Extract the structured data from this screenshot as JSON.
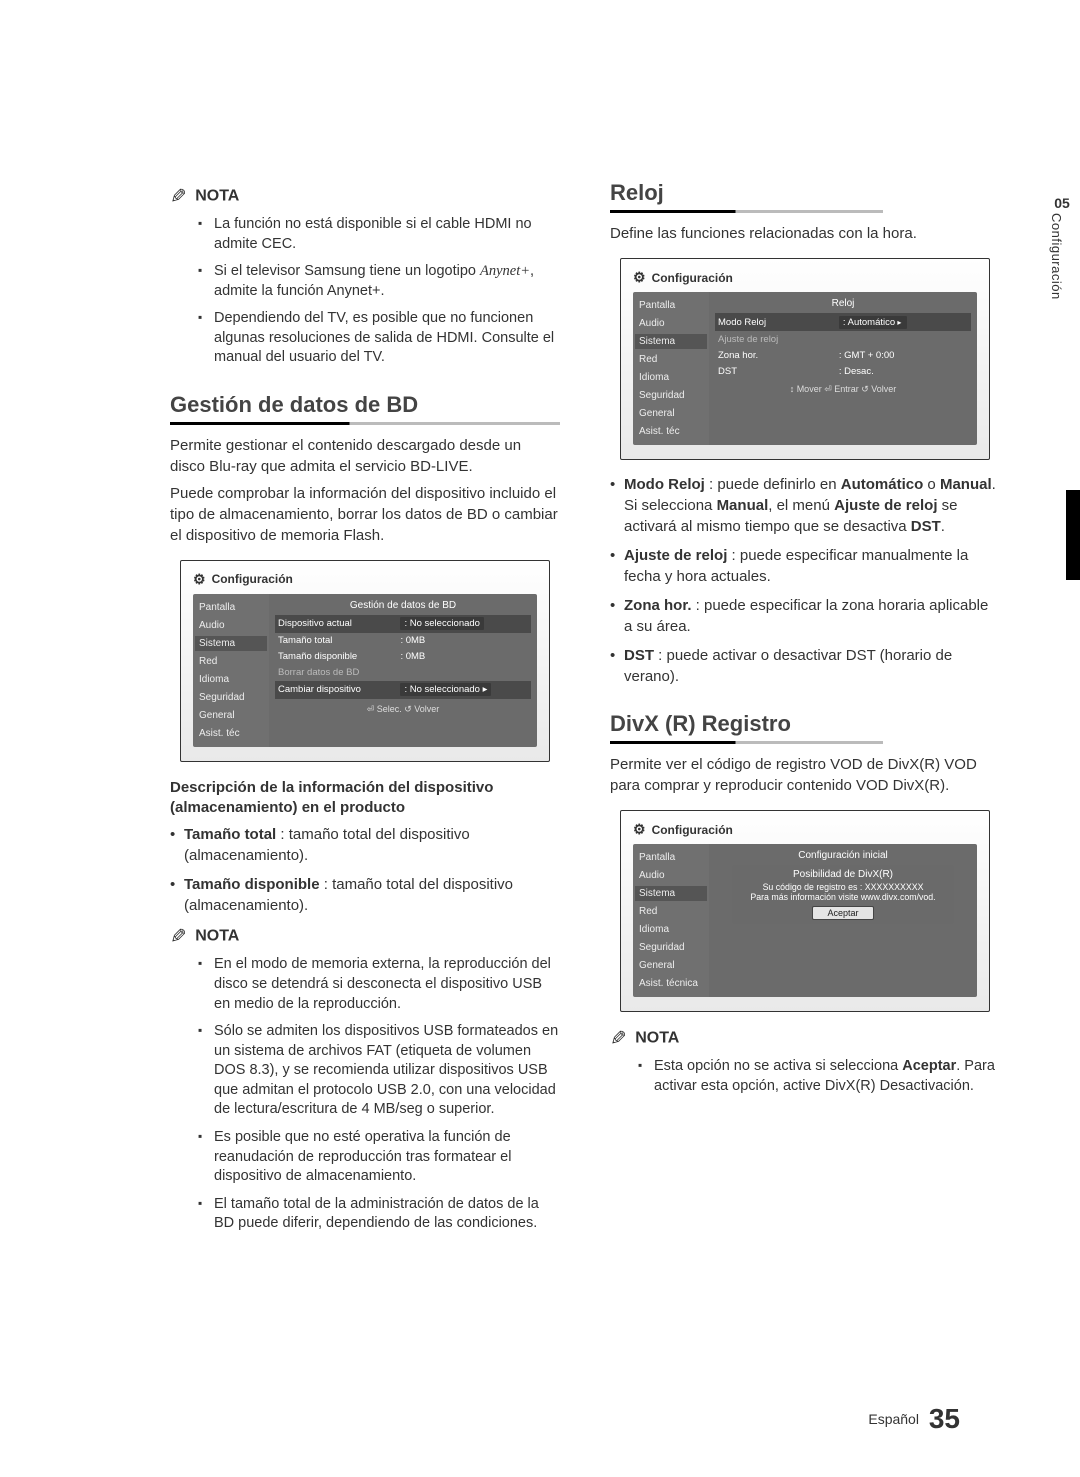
{
  "left": {
    "nota1": {
      "label": "NOTA",
      "items": [
        "La función no está disponible si el cable HDMI no admite CEC.",
        "Si el televisor Samsung tiene un logotipo <ANYNET>, admite la función Anynet+.",
        "Dependiendo del TV, es posible que no funcionen algunas resoluciones de salida de HDMI. Consulte el manual del usuario del TV."
      ]
    },
    "section1": {
      "title": "Gestión de datos de BD",
      "p1": "Permite gestionar el contenido descargado desde un disco Blu-ray que admita el servicio BD-LIVE.",
      "p2": "Puede comprobar la información del dispositivo incluido el tipo de almacenamiento, borrar los datos de BD o cambiar el dispositivo de memoria Flash."
    },
    "ui1": {
      "configTitle": "Configuración",
      "sidebar": [
        "Pantalla",
        "Audio",
        "Sistema",
        "Red",
        "Idioma",
        "Seguridad",
        "General",
        "Asist. téc"
      ],
      "mainTitle": "Gestión de datos de BD",
      "rows": [
        {
          "k": "Dispositivo actual",
          "v": ": No seleccionado",
          "sel": true
        },
        {
          "k": "Tamaño total",
          "v": ": 0MB"
        },
        {
          "k": "Tamaño disponible",
          "v": ": 0MB"
        },
        {
          "k": "Borrar datos de BD",
          "v": "",
          "dim": true
        },
        {
          "k": "Cambiar dispositivo",
          "v": ": No seleccionado ▸",
          "sel": true
        }
      ],
      "footer": "⏎ Selec.   ↺ Volver"
    },
    "descHeading": "Descripción de la información del dispositivo (almacenamiento) en el producto",
    "descBullets": [
      {
        "b": "Tamaño total",
        "t": " : tamaño total del dispositivo (almacenamiento)."
      },
      {
        "b": "Tamaño disponible",
        "t": " : tamaño total del dispositivo (almacenamiento)."
      }
    ],
    "nota2": {
      "label": "NOTA",
      "items": [
        "En el modo de memoria externa, la reproducción del disco se detendrá si desconecta el dispositivo USB en medio de la reproducción.",
        "Sólo se admiten los dispositivos USB formateados en un sistema de archivos FAT (etiqueta de volumen DOS 8.3), y se recomienda utilizar dispositivos USB que admitan el protocolo USB 2.0, con una velocidad de lectura/escritura de 4 MB/seg o superior.",
        "Es posible que no esté operativa la función de reanudación de reproducción tras formatear el dispositivo de almacenamiento.",
        "El tamaño total de la administración de datos de la BD puede diferir, dependiendo de las condiciones."
      ]
    }
  },
  "right": {
    "section1": {
      "title": "Reloj",
      "p": "Define las funciones relacionadas con la hora."
    },
    "ui2": {
      "configTitle": "Configuración",
      "sidebar": [
        "Pantalla",
        "Audio",
        "Sistema",
        "Red",
        "Idioma",
        "Seguridad",
        "General",
        "Asist. téc"
      ],
      "mainTitle": "Reloj",
      "rows": [
        {
          "k": "Modo Reloj",
          "v": ": Automático",
          "sel": true,
          "tri": true
        },
        {
          "k": "Ajuste de reloj",
          "v": "",
          "dim": true
        },
        {
          "k": "Zona hor.",
          "v": ": GMT + 0:00"
        },
        {
          "k": "DST",
          "v": ": Desac."
        }
      ],
      "footer": "↕ Mover   ⏎ Entrar   ↺ Volver"
    },
    "bullets": [
      {
        "b": "Modo Reloj",
        "t": " : puede definirlo en ",
        "b2": "Automático",
        "t2": " o ",
        "b3": "Manual",
        "t3": ".",
        "extra": "Si selecciona <b>Manual</b>, el menú <b>Ajuste de reloj</b> se activará al mismo tiempo que se desactiva <b>DST</b>."
      },
      {
        "b": "Ajuste de reloj",
        "t": " : puede especificar manualmente la fecha y hora actuales."
      },
      {
        "b": "Zona hor.",
        "t": " : puede especificar la zona horaria aplicable a su área."
      },
      {
        "b": "DST",
        "t": " : puede activar o desactivar DST (horario de verano)."
      }
    ],
    "section2": {
      "title": "DivX (R) Registro",
      "p": "Permite ver el código de registro VOD de DivX(R) VOD para comprar y reproducir contenido VOD DivX(R)."
    },
    "ui3": {
      "configTitle": "Configuración",
      "sidebar": [
        "Pantalla",
        "Audio",
        "Sistema",
        "Red",
        "Idioma",
        "Seguridad",
        "General",
        "Asist. técnica"
      ],
      "mainTitle": "Configuración inicial",
      "dlgTitle": "Posibilidad de DivX(R)",
      "dlgL1": "Su código de registro es : XXXXXXXXXX",
      "dlgL2": "Para más información visite www.divx.com/vod.",
      "btn": "Aceptar"
    },
    "nota": {
      "label": "NOTA",
      "items": [
        "Esta opción no se activa si selecciona <b>Aceptar</b>. Para activar esta opción, active DivX(R) Desactivación."
      ]
    }
  },
  "sideTab": {
    "num": "05",
    "txt": "Configuración"
  },
  "footer": {
    "lang": "Español",
    "page": "35"
  }
}
